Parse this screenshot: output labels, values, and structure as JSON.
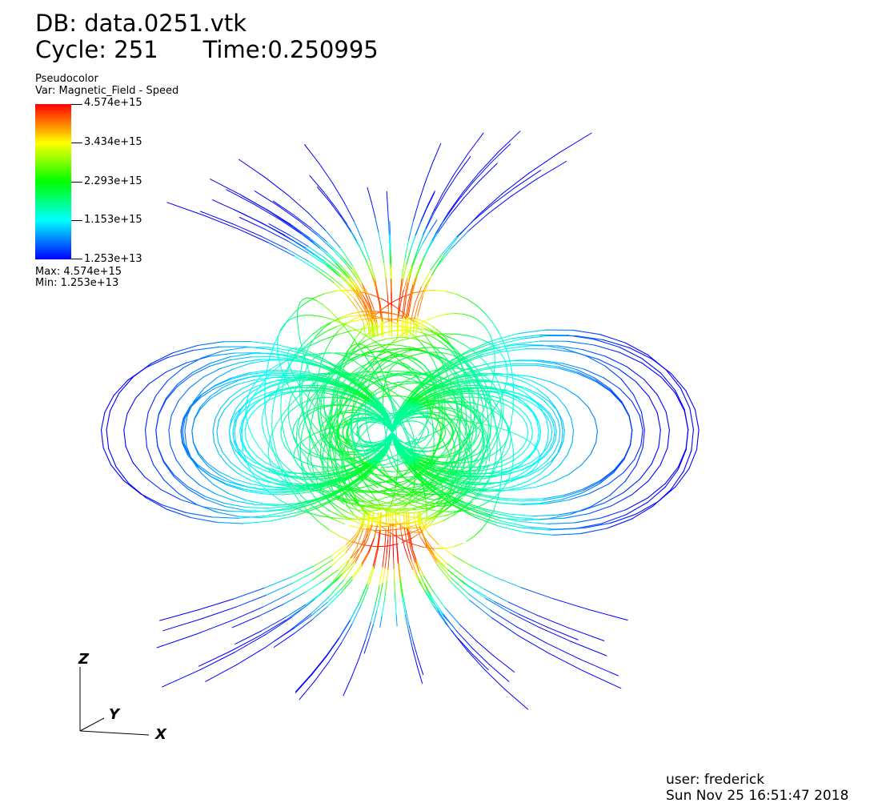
{
  "header": {
    "db": "DB: data.0251.vtk",
    "cycle": "Cycle: 251",
    "time": "Time:0.250995"
  },
  "legend": {
    "plot_type": "Pseudocolor",
    "variable": "Var: Magnetic_Field - Speed",
    "ticks": [
      "4.574e+15",
      "3.434e+15",
      "2.293e+15",
      "1.153e+15",
      "1.253e+13"
    ],
    "max": "Max:  4.574e+15",
    "min": "Min:  1.253e+13"
  },
  "axes": {
    "z": "Z",
    "y": "Y",
    "x": "X"
  },
  "footer": {
    "user": "user: frederick",
    "date": "Sun Nov 25 16:51:47 2018"
  },
  "colormap": [
    "#0000ff",
    "#00ffff",
    "#00ff00",
    "#ffff00",
    "#ff0000"
  ]
}
